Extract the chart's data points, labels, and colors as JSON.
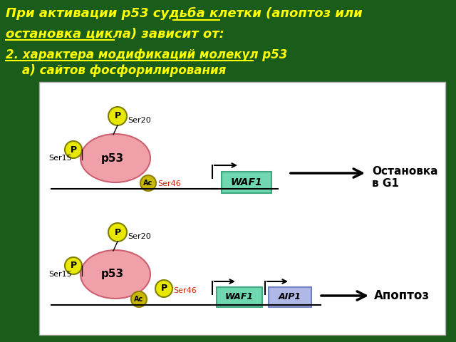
{
  "bg_color": "#1a5c1a",
  "white_panel_color": "#ffffff",
  "p53_color": "#f0a0a8",
  "p53_outline": "#cc6070",
  "p_circle_color": "#e8e800",
  "p_circle_outline": "#808000",
  "ac_circle_color": "#c8b800",
  "ac_circle_outline": "#908000",
  "waf1_color": "#70d8b0",
  "waf1_outline": "#40a880",
  "aip1_color": "#b0b8e8",
  "aip1_outline": "#7080c0",
  "ser46_color": "#cc2200",
  "yellow": "#ffff00",
  "black": "#000000",
  "title_line1": "При активации p53 судьба клетки (апоптоз или",
  "title_line2": "остановка цикла) зависит от:",
  "subtitle1": "2. характера модификаций молекул p53",
  "subtitle2": "    а) сайтов фосфорилирования",
  "ostanovka_text": "Остановка\nв G1",
  "apoptoz_text": "Апоптоз"
}
